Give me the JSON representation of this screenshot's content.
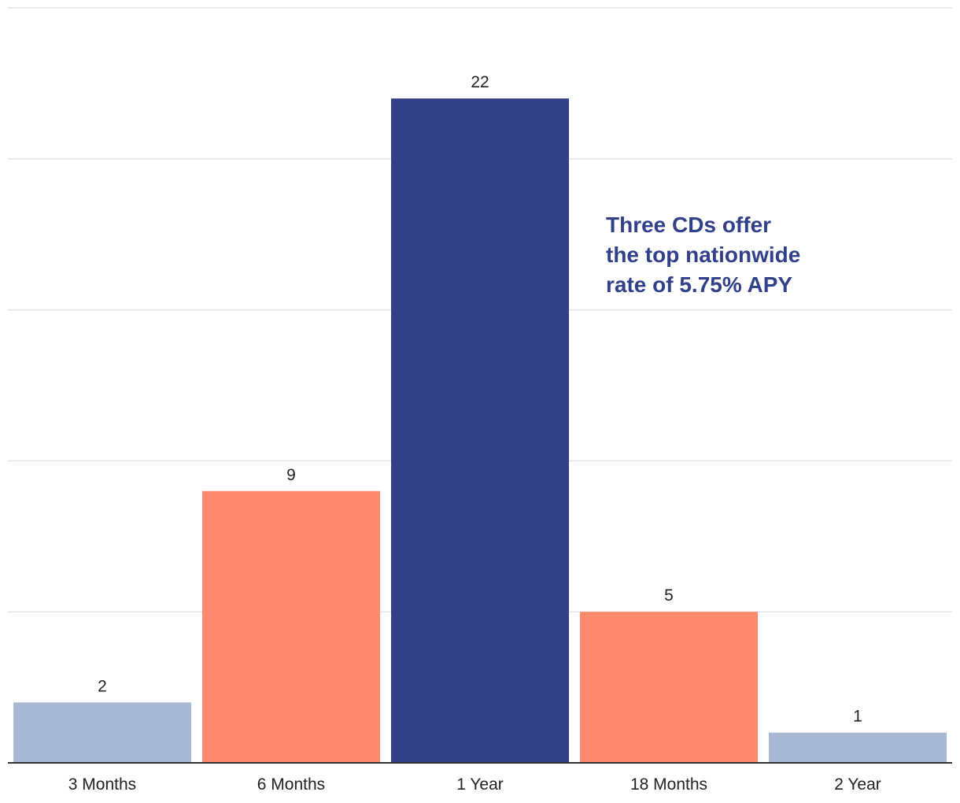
{
  "chart_data": {
    "type": "bar",
    "title": "",
    "xlabel": "",
    "ylabel": "",
    "categories": [
      "3 Months",
      "6 Months",
      "1 Year",
      "18 Months",
      "2 Year"
    ],
    "values": [
      2,
      9,
      22,
      5,
      1
    ],
    "bar_colors": [
      "#a7b7d4",
      "#ff8b6c",
      "#323f89",
      "#ff8b6c",
      "#a7b7d4"
    ],
    "ylim": [
      0,
      25
    ],
    "ygrid_step": 5,
    "grid": true,
    "y_tick_labels_shown": false,
    "annotation": {
      "lines": [
        "Three CDs offer",
        "the top nationwide",
        "rate of 5.75% APY"
      ],
      "color": "#323f89"
    },
    "gridline_color": "#e3e3e3",
    "baseline_color": "#333333",
    "text_color": "#222222"
  }
}
